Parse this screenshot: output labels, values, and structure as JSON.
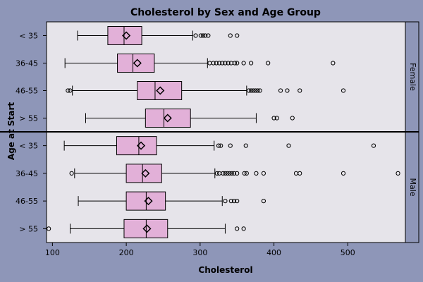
{
  "colors": {
    "background": "#8e96b8",
    "panel": "#e6e4ea",
    "strip": "#8e96b8",
    "box_fill": "#e2b0d8",
    "box_stroke": "#000000"
  },
  "chart_data": {
    "type": "boxplot",
    "title": "Cholesterol by Sex and Age Group",
    "xlabel": "Cholesterol",
    "ylabel": "Age at Start",
    "xlim": [
      92,
      578
    ],
    "xticks": [
      100,
      200,
      300,
      400,
      500
    ],
    "grid": false,
    "panels": [
      {
        "name": "Female",
        "groups": [
          {
            "label": "< 35",
            "whisker_low": 134,
            "q1": 175,
            "median": 197,
            "mean": 200,
            "q3": 221,
            "whisker_high": 290,
            "outliers": [
              294,
              301,
              304,
              307,
              311,
              341,
              350
            ]
          },
          {
            "label": "36-45",
            "whisker_low": 117,
            "q1": 188,
            "median": 209,
            "mean": 215,
            "q3": 238,
            "whisker_high": 310,
            "outliers": [
              313,
              318,
              322,
              326,
              330,
              334,
              338,
              342,
              347,
              350,
              359,
              369,
              392,
              480
            ]
          },
          {
            "label": "46-55",
            "whisker_low": 127,
            "q1": 215,
            "median": 239,
            "mean": 246,
            "q3": 275,
            "whisker_high": 363,
            "outliers": [
              121,
              124,
              366,
              369,
              372,
              375,
              378,
              381,
              409,
              418,
              435,
              494
            ]
          },
          {
            "label": "> 55",
            "whisker_low": 145,
            "q1": 226,
            "median": 251,
            "mean": 256,
            "q3": 287,
            "whisker_high": 376,
            "outliers": [
              400,
              404,
              425
            ]
          }
        ]
      },
      {
        "name": "Male",
        "groups": [
          {
            "label": "< 35",
            "whisker_low": 116,
            "q1": 187,
            "median": 217,
            "mean": 220,
            "q3": 241,
            "whisker_high": 319,
            "outliers": [
              325,
              328,
              341,
              362,
              420,
              535
            ]
          },
          {
            "label": "36-45",
            "whisker_low": 130,
            "q1": 200,
            "median": 222,
            "mean": 226,
            "q3": 248,
            "whisker_high": 320,
            "outliers": [
              126,
              323,
              326,
              331,
              334,
              337,
              340,
              343,
              346,
              350,
              360,
              363,
              376,
              386,
              430,
              435,
              494,
              568
            ]
          },
          {
            "label": "46-55",
            "whisker_low": 135,
            "q1": 200,
            "median": 227,
            "mean": 230,
            "q3": 253,
            "whisker_high": 330,
            "outliers": [
              334,
              342,
              346,
              350,
              386
            ]
          },
          {
            "label": "> 55",
            "whisker_low": 124,
            "q1": 197,
            "median": 227,
            "mean": 228,
            "q3": 256,
            "whisker_high": 334,
            "outliers": [
              95,
              350,
              359
            ]
          }
        ]
      }
    ]
  }
}
